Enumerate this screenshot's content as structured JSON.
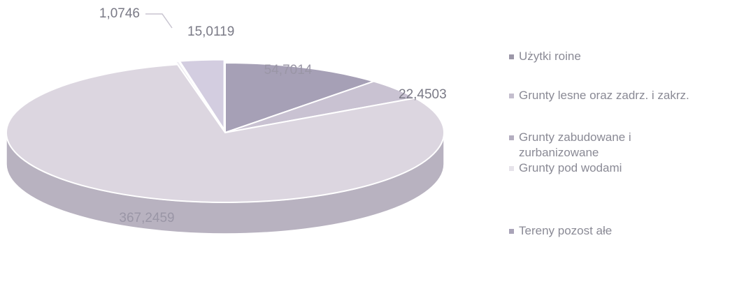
{
  "chart_data": {
    "type": "pie",
    "style": "3d-exploded",
    "categories": [
      "Użytki rolne",
      "Grunty leśne oraz zadrz. i zakrz.",
      "Grunty zabudowane i zurbanizowane",
      "Grunty pod wodami",
      "Tereny pozostałe"
    ],
    "values": [
      54.7014,
      22.4503,
      367.2459,
      1.0746,
      15.0119
    ],
    "value_labels": [
      "54,7014",
      "22,4503",
      "367,2459",
      "1,0746",
      "15,0119"
    ],
    "legend_labels": [
      "Użytki roine",
      "Grunty lesne oraz zadrz. i zakrz.",
      "Grunty zabudowane i zurbanizowane",
      "Grunty pod wodami",
      "Tereny pozost ałe"
    ],
    "colors": [
      "#a6a0b6",
      "#c9c2d2",
      "#dcd6e0",
      "#eeecf2",
      "#d3cde0"
    ],
    "side_colors": [
      "#8e889c",
      "#aca5b8",
      "#b8b2c0",
      "#d0ccd6",
      "#b4aec2"
    ],
    "legend_colors": [
      "#9c97a8",
      "#c4bece",
      "#b4aec0",
      "#e6e3ea",
      "#a9a3b8"
    ],
    "legend_position": "right",
    "title": ""
  }
}
